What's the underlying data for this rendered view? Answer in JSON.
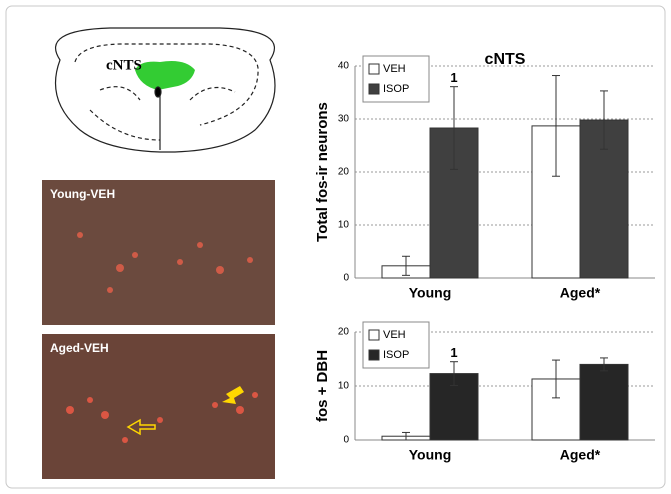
{
  "diagram": {
    "label": "cNTS"
  },
  "photos": [
    {
      "label": "Young-VEH"
    },
    {
      "label": "Aged-VEH"
    }
  ],
  "chart_data": [
    {
      "type": "bar",
      "title": "cNTS",
      "y_label": "Total fos-ir neurons",
      "categories": [
        "Young",
        "Aged*"
      ],
      "series": [
        {
          "name": "VEH",
          "color": "#ffffff",
          "values": [
            2.3,
            28.7
          ],
          "errors": [
            1.8,
            9.5
          ]
        },
        {
          "name": "ISOP",
          "color": "#404040",
          "values": [
            28.3,
            29.8
          ],
          "errors": [
            7.8,
            5.5
          ]
        }
      ],
      "ylim": [
        0,
        40
      ],
      "yticks": [
        0,
        10,
        20,
        30,
        40
      ],
      "grid": true,
      "legend": "top-left",
      "annotations": [
        "1"
      ]
    },
    {
      "type": "bar",
      "y_label": "fos + DBH",
      "categories": [
        "Young",
        "Aged*"
      ],
      "series": [
        {
          "name": "VEH",
          "color": "#ffffff",
          "values": [
            0.7,
            11.3
          ],
          "errors": [
            0.7,
            3.5
          ]
        },
        {
          "name": "ISOP",
          "color": "#262626",
          "values": [
            12.3,
            14.0
          ],
          "errors": [
            2.2,
            1.2
          ]
        }
      ],
      "ylim": [
        0,
        20
      ],
      "yticks": [
        0,
        10,
        20
      ],
      "grid": true,
      "legend": "top-left",
      "annotations": [
        "1"
      ]
    }
  ]
}
